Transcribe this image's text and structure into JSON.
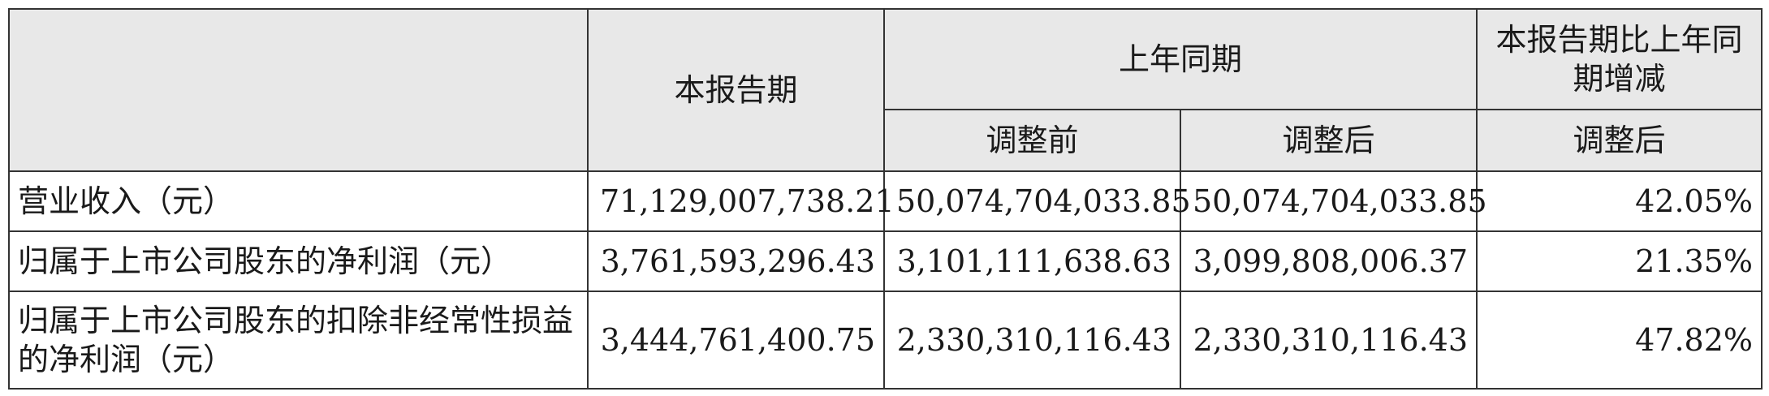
{
  "table": {
    "header": {
      "current_period": "本报告期",
      "prior_year_period": "上年同期",
      "change": "本报告期比上年同期增减",
      "before_adjustment": "调整前",
      "after_adjustment": "调整后",
      "change_after_adjustment": "调整后"
    },
    "rows": [
      {
        "label": "营业收入（元）",
        "current": "71,129,007,738.21",
        "prior_before": "50,074,704,033.85",
        "prior_after": "50,074,704,033.85",
        "change": "42.05%"
      },
      {
        "label": "归属于上市公司股东的净利润（元）",
        "current": "3,761,593,296.43",
        "prior_before": "3,101,111,638.63",
        "prior_after": "3,099,808,006.37",
        "change": "21.35%"
      },
      {
        "label": "归属于上市公司股东的扣除非经常性损益的净利润（元）",
        "current": "3,444,761,400.75",
        "prior_before": "2,330,310,116.43",
        "prior_after": "2,330,310,116.43",
        "change": "47.82%"
      }
    ]
  }
}
